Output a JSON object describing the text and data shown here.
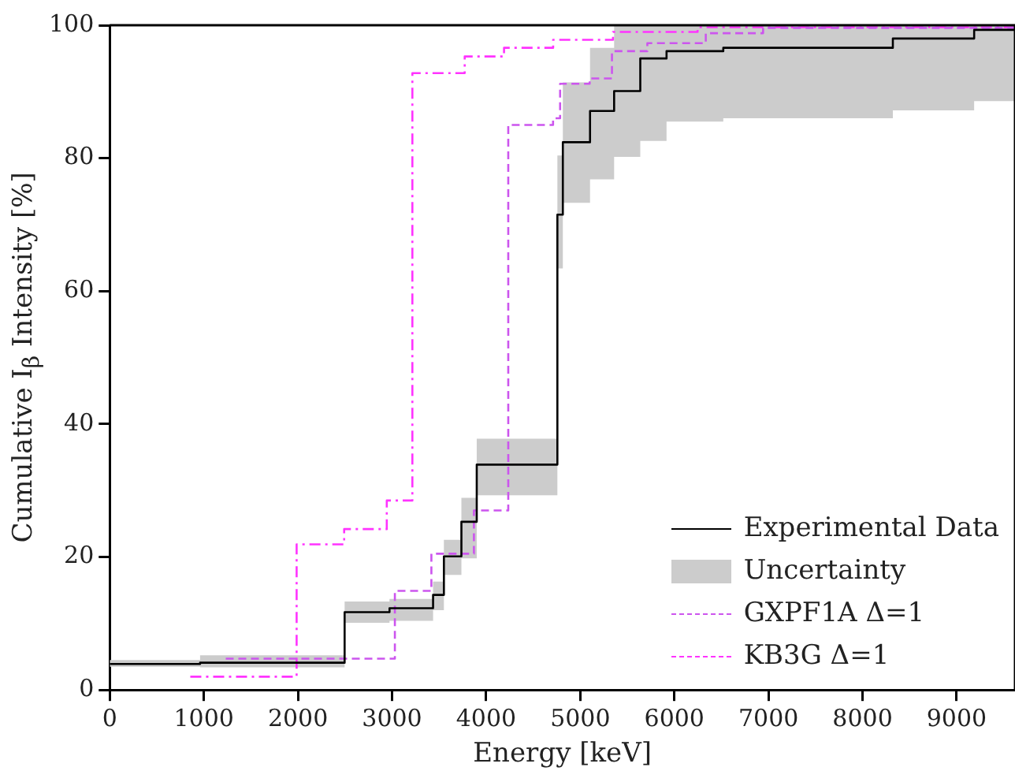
{
  "chart_data": {
    "type": "step",
    "xlabel": "Energy [keV]",
    "ylabel": "Cumulative I$_{β}$ Intensity [%]",
    "xlim": [
      0,
      9620
    ],
    "ylim": [
      0,
      100
    ],
    "xticks": [
      0,
      1000,
      2000,
      3000,
      4000,
      5000,
      6000,
      7000,
      8000,
      9000
    ],
    "yticks": [
      0,
      20,
      40,
      60,
      80,
      100
    ],
    "legend": "bottom right",
    "series": [
      {
        "name": "Experimental Data",
        "color": "#000000",
        "line_style": "solid",
        "x": [
          0,
          960,
          2496,
          2973,
          3436,
          3551,
          3737,
          3900,
          4757,
          4815,
          5104,
          5360,
          5638,
          5917,
          6520,
          8322,
          9186,
          9620
        ],
        "values": [
          3.9,
          4.1,
          11.7,
          12.3,
          14.3,
          20.1,
          25.3,
          33.9,
          71.5,
          82.4,
          87.1,
          90.1,
          95.0,
          96.1,
          96.6,
          98.0,
          99.3,
          99.3
        ]
      },
      {
        "name": "Uncertainty",
        "color": "#cccccc",
        "x": [
          0,
          960,
          2496,
          2973,
          3436,
          3551,
          3737,
          3900,
          4757,
          4815,
          5104,
          5360,
          5638,
          5917,
          6520,
          8322,
          9186,
          9620
        ],
        "values": [
          null,
          null,
          null,
          null,
          null,
          null,
          null,
          null,
          null,
          null,
          null,
          null,
          null,
          null,
          null,
          null,
          null,
          null
        ],
        "lower": [
          3.5,
          3.4,
          10.1,
          10.4,
          12.0,
          17.3,
          19.8,
          29.3,
          63.4,
          73.3,
          76.8,
          80.2,
          82.6,
          85.5,
          86.0,
          87.2,
          88.6,
          88.6
        ],
        "upper": [
          4.5,
          5.2,
          13.3,
          13.7,
          16.3,
          22.6,
          28.9,
          37.8,
          80.4,
          91.4,
          96.6,
          99.9,
          100,
          100,
          100,
          100,
          100,
          100
        ]
      },
      {
        "name": "GXPF1A Δ=1",
        "color": "#cc55ee",
        "line_style": "dashed",
        "x": [
          1233,
          3030,
          3418,
          3870,
          4235,
          4711,
          4786,
          5100,
          5337,
          5713,
          6334,
          6943,
          9620
        ],
        "values": [
          4.7,
          14.9,
          20.5,
          27.0,
          85.0,
          86.0,
          91.2,
          92.0,
          96.1,
          97.3,
          98.8,
          99.6,
          99.6
        ]
      },
      {
        "name": "KB3G Δ=1",
        "color": "#ff33ff",
        "line_style": "dashdot",
        "x": [
          856,
          1986,
          2491,
          2944,
          3216,
          3772,
          4190,
          4712,
          5348,
          6247,
          9620
        ],
        "values": [
          2.0,
          21.9,
          24.2,
          28.5,
          92.8,
          95.3,
          96.6,
          97.8,
          99.0,
          99.7,
          99.7
        ]
      }
    ]
  }
}
